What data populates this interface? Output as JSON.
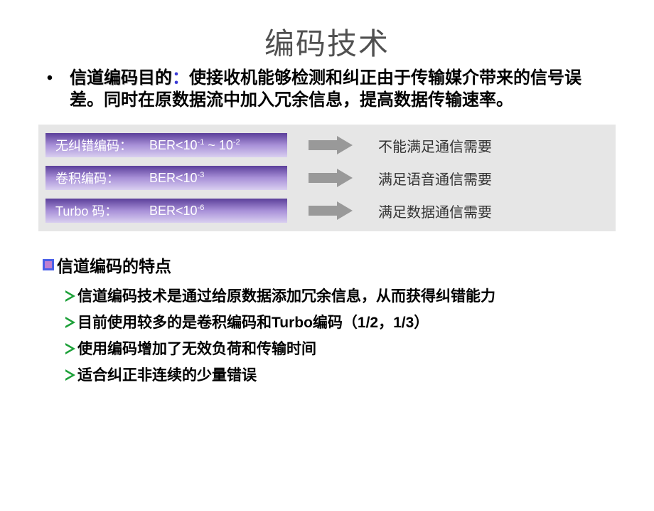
{
  "title": "编码技术",
  "purpose": {
    "label": "信道编码目的",
    "colon": "：",
    "body": "使接收机能够检测和纠正由于传输媒介带来的信号误差。同时在原数据流中加入冗余信息，提高数据传输速率。"
  },
  "table": {
    "background_color": "#e6e6e6",
    "bar_gradient": [
      "#5b3f9a",
      "#a890d8",
      "#d9cff0"
    ],
    "bar_text_color": "#ffffff",
    "arrow_color": "#999999",
    "req_color": "#333333",
    "rows": [
      {
        "label": "无纠错编码：",
        "ber_html": "BER<10<sup>-1</sup> ~ 10<sup>-2</sup>",
        "req": "不能满足通信需要"
      },
      {
        "label": "卷积编码：",
        "ber_html": "BER<10<sup>-3</sup>",
        "req": "满足语音通信需要"
      },
      {
        "label": "Turbo  码：",
        "ber_html": "BER<10<sup>-6</sup>",
        "req": "满足数据通信需要"
      }
    ]
  },
  "features": {
    "heading": "信道编码的特点",
    "bullet_colors": {
      "outer": "#4a60e8",
      "inner": "#c080d0"
    },
    "chevron_color": "#1ca038",
    "items": [
      "信道编码技术是通过给原数据添加冗余信息，从而获得纠错能力",
      "目前使用较多的是卷积编码和Turbo编码（1/2，1/3）",
      "使用编码增加了无效负荷和传输时间",
      "适合纠正非连续的少量错误"
    ]
  }
}
